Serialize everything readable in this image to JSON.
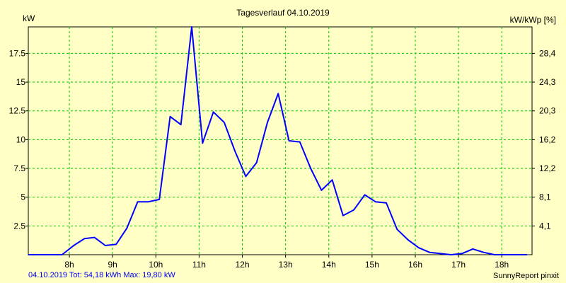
{
  "chart_data": {
    "type": "line",
    "title": "Tagesverlauf 04.10.2019",
    "ylabel_left": "kW",
    "ylabel_right": "kW/kWp [%]",
    "x_ticks": [
      "8h",
      "9h",
      "10h",
      "11h",
      "12h",
      "13h",
      "14h",
      "15h",
      "16h",
      "17h",
      "18h"
    ],
    "x_tick_values": [
      8,
      9,
      10,
      11,
      12,
      13,
      14,
      15,
      16,
      17,
      18
    ],
    "xlim": [
      7.05,
      18.7
    ],
    "y_ticks_left": [
      "2.5",
      "5",
      "7.5",
      "10",
      "12.5",
      "15",
      "17.5"
    ],
    "y_tick_values_left": [
      2.5,
      5,
      7.5,
      10,
      12.5,
      15,
      17.5
    ],
    "y_ticks_right": [
      "4,1",
      "8,1",
      "12,2",
      "16,2",
      "20,3",
      "24,3",
      "28,4"
    ],
    "ylim": [
      0,
      19.8
    ],
    "grid": true,
    "series_color": "#0000ff",
    "grid_color": "#00c800",
    "x": [
      7.05,
      7.33,
      7.58,
      7.83,
      8.1,
      8.35,
      8.58,
      8.83,
      9.08,
      9.33,
      9.58,
      9.83,
      10.08,
      10.33,
      10.58,
      10.83,
      11.08,
      11.33,
      11.58,
      11.83,
      12.08,
      12.33,
      12.58,
      12.83,
      13.08,
      13.33,
      13.58,
      13.83,
      14.08,
      14.33,
      14.58,
      14.83,
      15.08,
      15.33,
      15.58,
      15.83,
      16.08,
      16.33,
      16.58,
      16.83,
      17.08,
      17.33,
      17.58,
      17.83,
      18.08,
      18.33,
      18.58
    ],
    "values": [
      0,
      0,
      0,
      0,
      0.8,
      1.4,
      1.5,
      0.8,
      0.9,
      2.3,
      4.6,
      4.6,
      4.8,
      12.0,
      11.3,
      19.8,
      9.7,
      12.4,
      11.5,
      9.0,
      6.8,
      8.0,
      11.5,
      14.0,
      9.9,
      9.8,
      7.5,
      5.6,
      6.5,
      3.4,
      3.9,
      5.2,
      4.6,
      4.5,
      2.2,
      1.3,
      0.6,
      0.2,
      0.1,
      0,
      0.1,
      0.5,
      0.2,
      0,
      0,
      0,
      0
    ]
  },
  "footer": {
    "left": "04.10.2019 Tot: 54,18 kWh Max: 19,80 kW",
    "right": "SunnyReport pinxit"
  }
}
